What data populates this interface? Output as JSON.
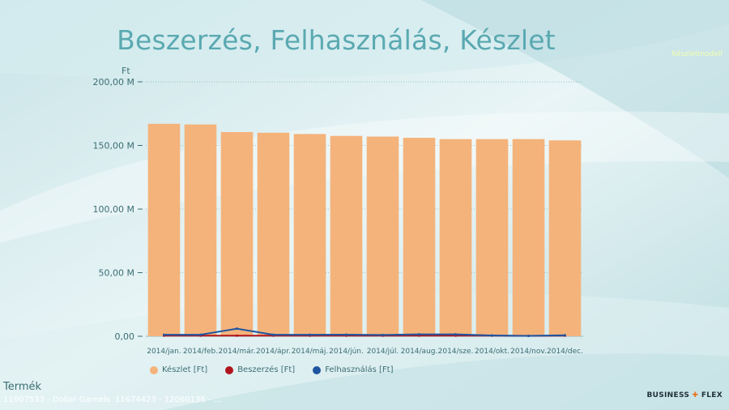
{
  "title": "Beszerzés, Felhasználás, Készlet",
  "model_label": "Készletmodell",
  "filter": {
    "label": "Termék",
    "values": [
      "11007533 - Dollar Garnels",
      "11674423 - 12060136 - ..."
    ]
  },
  "logo": {
    "brand_left": "BUSINESS",
    "brand_right": "FLEX",
    "tagline": ""
  },
  "colors": {
    "keszlet": "#f4b37b",
    "beszerzes": "#b0151d",
    "felhasznalas": "#1f55a0",
    "accent": "#5aa9b1"
  },
  "chart_data": {
    "type": "bar",
    "ylabel": "Ft",
    "ylim": [
      0,
      200000000
    ],
    "yticks": [
      0,
      50000000,
      100000000,
      150000000,
      200000000
    ],
    "ytick_labels": [
      "0,00",
      "50,00 M",
      "100,00 M",
      "150,00 M",
      "200,00 M"
    ],
    "categories": [
      "2014/jan.",
      "2014/feb.",
      "2014/már.",
      "2014/ápr.",
      "2014/máj.",
      "2014/jún.",
      "2014/júl.",
      "2014/aug.",
      "2014/sze.",
      "2014/okt.",
      "2014/nov.",
      "2014/dec."
    ],
    "series": [
      {
        "name": "Készlet [Ft]",
        "kind": "bar",
        "values": [
          167000000,
          166500000,
          160500000,
          160000000,
          159000000,
          157500000,
          157000000,
          156000000,
          155000000,
          155000000,
          155000000,
          154000000
        ]
      },
      {
        "name": "Beszerzés [Ft]",
        "kind": "line",
        "values": [
          500000,
          500000,
          500000,
          500000,
          500000,
          500000,
          500000,
          500000,
          500000,
          500000,
          300000,
          500000
        ]
      },
      {
        "name": "Felhasználás [Ft]",
        "kind": "line",
        "values": [
          1200000,
          1200000,
          6000000,
          1200000,
          1200000,
          1300000,
          1000000,
          1500000,
          1500000,
          600000,
          300000,
          800000
        ]
      }
    ],
    "legend": "bottom"
  }
}
